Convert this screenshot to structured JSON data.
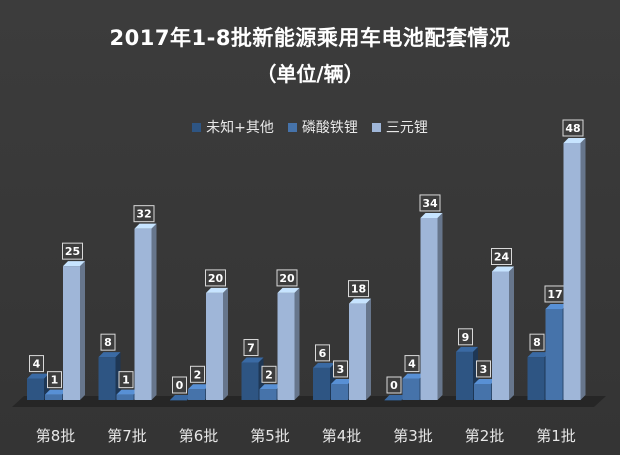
{
  "chart_data": {
    "type": "bar",
    "title": "2017年1-8批新能源乘用车电池配套情况",
    "subtitle": "（单位/辆）",
    "categories": [
      "第8批",
      "第7批",
      "第6批",
      "第5批",
      "第4批",
      "第3批",
      "第2批",
      "第1批"
    ],
    "series": [
      {
        "name": "未知+其他",
        "color": "#2e5583",
        "values": [
          4,
          8,
          0,
          7,
          6,
          0,
          9,
          8
        ]
      },
      {
        "name": "磷酸铁锂",
        "color": "#4673aa",
        "values": [
          1,
          1,
          2,
          2,
          3,
          4,
          3,
          17
        ]
      },
      {
        "name": "三元锂",
        "color": "#9fb6d8",
        "values": [
          25,
          32,
          20,
          20,
          18,
          34,
          24,
          48
        ]
      }
    ],
    "ylim": [
      0,
      48
    ],
    "legend_position": "top-center",
    "grid": false
  }
}
